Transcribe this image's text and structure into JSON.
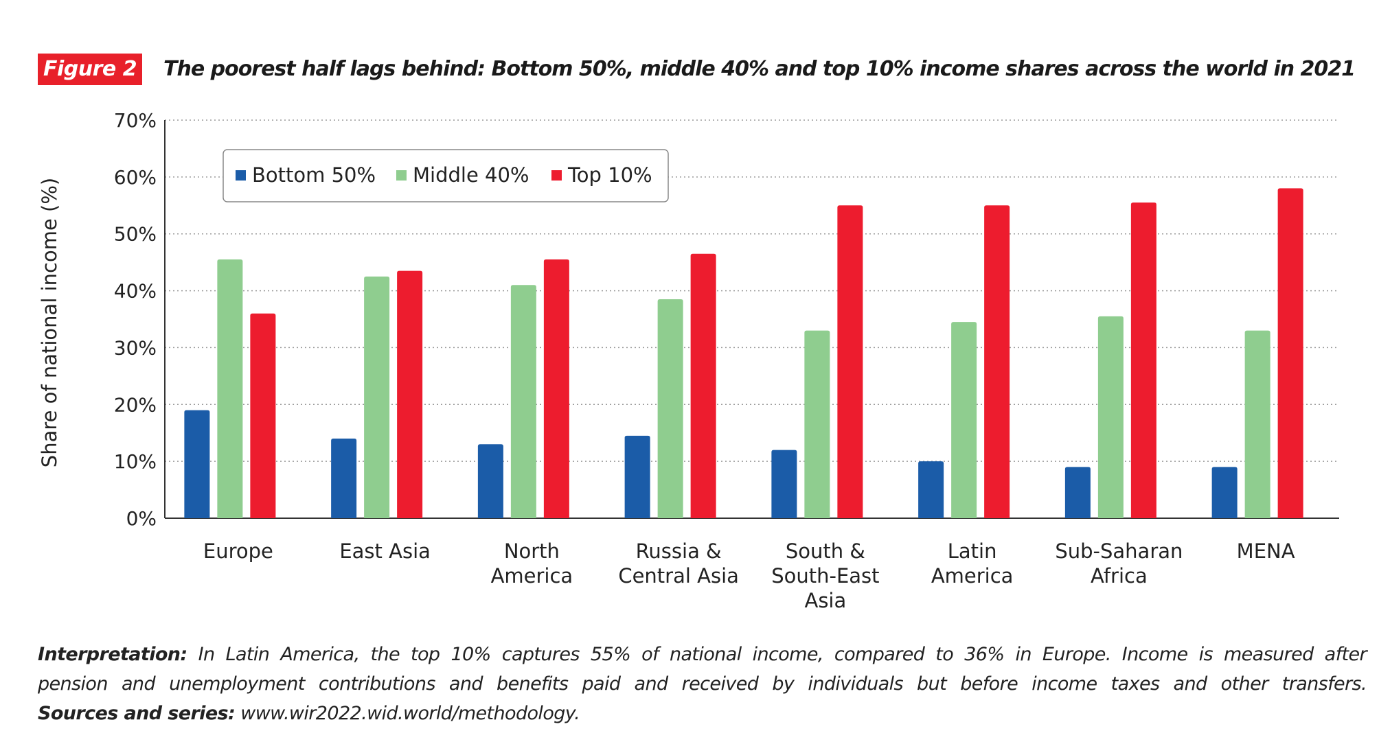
{
  "figure_label": "Figure 2",
  "title": "The poorest half lags behind: Bottom 50%, middle 40% and top 10% income shares across the world in 2021",
  "notes": {
    "interpretation_label": "Interpretation:",
    "interpretation_line1": "In Latin America, the top 10% captures 55% of national income, compared to 36% in Europe. Income is measured after",
    "interpretation_line2": "pension and unemployment contributions and benefits paid and received by individuals but before income taxes and other transfers.",
    "sources_label": "Sources and series:",
    "sources_text": "www.wir2022.wid.world/methodology."
  },
  "colors": {
    "bottom": "#1b5ca8",
    "middle": "#8fcd8f",
    "top": "#ed1c2e",
    "axis": "#333333",
    "grid": "#9a9a9a"
  },
  "chart_data": {
    "type": "bar",
    "ylabel": "Share of national income (%)",
    "ylim": [
      0,
      70
    ],
    "yticks": [
      "0%",
      "10%",
      "20%",
      "30%",
      "40%",
      "50%",
      "60%",
      "70%"
    ],
    "ytick_values": [
      0,
      10,
      20,
      30,
      40,
      50,
      60,
      70
    ],
    "grid": true,
    "legend_position": "top-left",
    "categories": [
      [
        "Europe"
      ],
      [
        "East Asia"
      ],
      [
        "North",
        "America"
      ],
      [
        "Russia &",
        "Central Asia"
      ],
      [
        "South &",
        "South-East",
        "Asia"
      ],
      [
        "Latin",
        "America"
      ],
      [
        "Sub-Saharan",
        "Africa"
      ],
      [
        "MENA"
      ]
    ],
    "series": [
      {
        "name": "Bottom 50%",
        "color": "#1b5ca8",
        "values": [
          19,
          14,
          13,
          14.5,
          12,
          10,
          9,
          9
        ]
      },
      {
        "name": "Middle 40%",
        "color": "#8fcd8f",
        "values": [
          45.5,
          42.5,
          41,
          38.5,
          33,
          34.5,
          35.5,
          33
        ]
      },
      {
        "name": "Top 10%",
        "color": "#ed1c2e",
        "values": [
          36,
          43.5,
          45.5,
          46.5,
          55,
          55,
          55.5,
          58
        ]
      }
    ]
  }
}
